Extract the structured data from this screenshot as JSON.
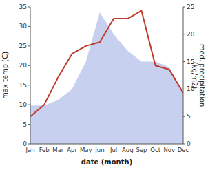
{
  "chart_data": {
    "type": "line",
    "xlabel": "date (month)",
    "ylabel": "max temp (C)",
    "y2label": "med. precipitation\n(kg/m2)",
    "categories": [
      "Jan",
      "Feb",
      "Mar",
      "Apr",
      "May",
      "Jun",
      "Jul",
      "Aug",
      "Sep",
      "Oct",
      "Nov",
      "Dec"
    ],
    "series": [
      {
        "type": "area",
        "axis": "y2",
        "color": "#c8d0f0",
        "values": [
          7,
          7,
          8,
          10,
          15,
          24,
          20,
          17,
          15,
          15,
          14,
          9
        ]
      },
      {
        "type": "line",
        "color": "#c0392b",
        "values": [
          7,
          10,
          17,
          23,
          25,
          26,
          32,
          32,
          34,
          20,
          19,
          13
        ]
      }
    ],
    "ylim": [
      0,
      35
    ],
    "yticks": [
      0,
      5,
      10,
      15,
      20,
      25,
      30,
      35
    ],
    "y2lim": [
      0,
      25
    ],
    "y2ticks": [
      0,
      5,
      10,
      15,
      20,
      25
    ],
    "grid": false
  }
}
